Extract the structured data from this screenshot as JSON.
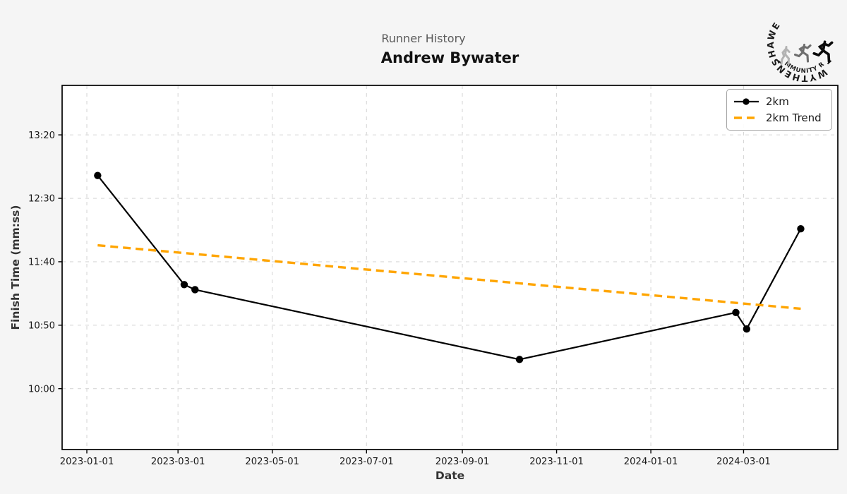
{
  "header": {
    "subtitle": "Runner History",
    "title": "Andrew Bywater"
  },
  "logo": {
    "top_text": "WYTHENSHAWE",
    "bottom_text": "COMMUNITY RUN"
  },
  "chart_data": {
    "type": "line",
    "title": "Runner History - Andrew Bywater",
    "xlabel": "Date",
    "ylabel": "Finish Time (mm:ss)",
    "grid": true,
    "x_axis": {
      "start": "2022-12-16",
      "end": "2024-05-01",
      "tick_dates": [
        "2023-01-01",
        "2023-03-01",
        "2023-05-01",
        "2023-07-01",
        "2023-09-01",
        "2023-11-01",
        "2024-01-01",
        "2024-03-01"
      ]
    },
    "y_axis": {
      "min_seconds": 552,
      "max_seconds": 839,
      "ticks": [
        {
          "label": "13:20",
          "seconds": 800
        },
        {
          "label": "12:30",
          "seconds": 750
        },
        {
          "label": "11:40",
          "seconds": 700
        },
        {
          "label": "10:50",
          "seconds": 650
        },
        {
          "label": "10:00",
          "seconds": 600
        }
      ]
    },
    "series": [
      {
        "name": "2km",
        "color": "#000000",
        "style": "solid-marker",
        "points": [
          {
            "date": "2023-01-08",
            "time": "12:48",
            "seconds": 768
          },
          {
            "date": "2023-03-05",
            "time": "11:22",
            "seconds": 682
          },
          {
            "date": "2023-03-12",
            "time": "11:18",
            "seconds": 678
          },
          {
            "date": "2023-10-08",
            "time": "10:23",
            "seconds": 623
          },
          {
            "date": "2024-02-25",
            "time": "11:00",
            "seconds": 660
          },
          {
            "date": "2024-03-03",
            "time": "10:47",
            "seconds": 647
          },
          {
            "date": "2024-04-07",
            "time": "12:06",
            "seconds": 726
          }
        ]
      },
      {
        "name": "2km Trend",
        "color": "#FFA500",
        "style": "dashed",
        "points": [
          {
            "date": "2023-01-08",
            "time": "11:53",
            "seconds": 713
          },
          {
            "date": "2024-04-07",
            "time": "11:03",
            "seconds": 663
          }
        ]
      }
    ],
    "legend": {
      "position": "top-right",
      "entries": [
        {
          "label": "2km"
        },
        {
          "label": "2km Trend"
        }
      ]
    }
  },
  "colors": {
    "background": "#f5f5f5",
    "plot_background": "#ffffff",
    "grid": "#d8d8d8",
    "series": "#000000",
    "trend": "#FFA500",
    "subtitle_text": "#5a5a5a",
    "title_text": "#111111"
  }
}
